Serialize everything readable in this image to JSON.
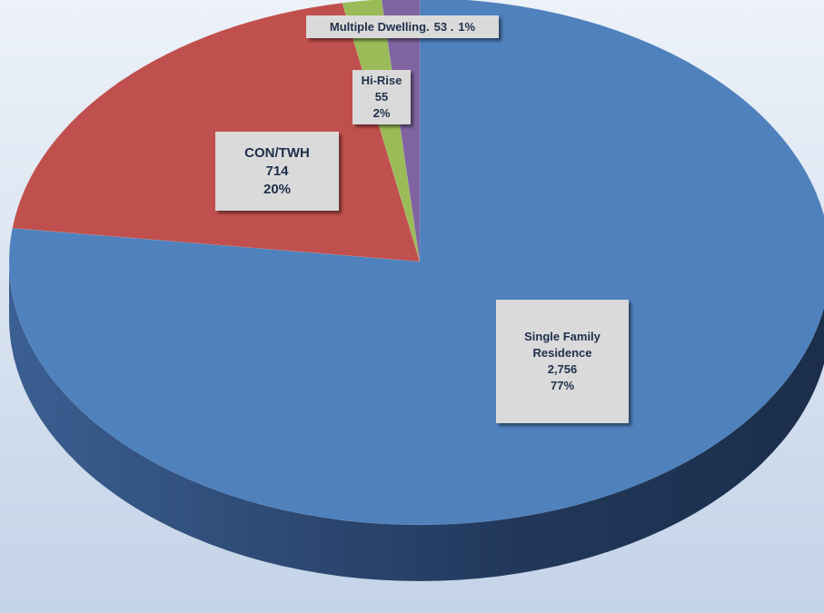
{
  "chart_data": {
    "type": "pie",
    "categories": [
      "Single Family Residence",
      "CON/TWH",
      "Hi-Rise",
      "Multiple Dwelling."
    ],
    "values": [
      2756,
      714,
      55,
      53
    ],
    "value_labels": [
      "2,756",
      "714",
      "55",
      "53 ."
    ],
    "percent_labels": [
      "77%",
      "20%",
      "2%",
      "1%"
    ],
    "colors": [
      "#4f81bd",
      "#c0504d",
      "#9bbb59",
      "#8064a2"
    ],
    "side_color": "#2c4f7f"
  }
}
